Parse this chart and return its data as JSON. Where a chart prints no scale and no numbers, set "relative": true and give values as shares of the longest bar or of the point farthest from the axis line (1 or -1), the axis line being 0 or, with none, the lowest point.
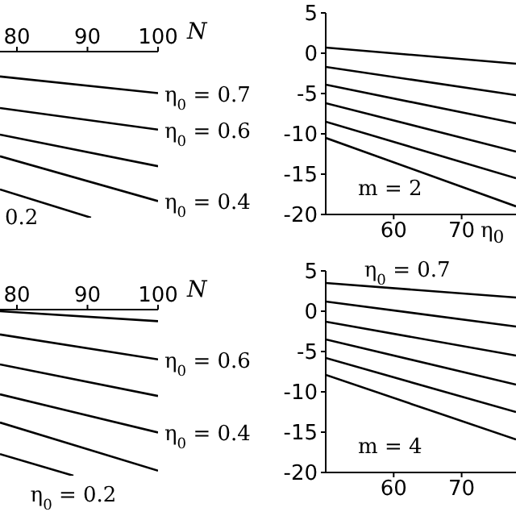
{
  "chart_data": [
    {
      "type": "line",
      "relative": true,
      "xlabel": "N",
      "xlim": [
        77.6,
        100
      ],
      "xticks": [
        80,
        90,
        100
      ],
      "series": [
        {
          "color": "#000000",
          "x": [
            77.6,
            100
          ],
          "values": [
            -0.15,
            -0.25
          ]
        },
        {
          "color": "#000000",
          "x": [
            77.6,
            100
          ],
          "values": [
            -0.34,
            -0.47
          ]
        },
        {
          "color": "#000000",
          "x": [
            77.6,
            100
          ],
          "values": [
            -0.5,
            -0.69
          ]
        },
        {
          "color": "#000000",
          "x": [
            77.6,
            100
          ],
          "values": [
            -0.63,
            -0.9
          ]
        },
        {
          "color": "#000000",
          "x": [
            77.6,
            90.5
          ],
          "values": [
            -0.83,
            -1
          ]
        }
      ],
      "annotations": [
        {
          "text": "η$_{0}$ = 0.7",
          "x": 100,
          "y": -0.25
        },
        {
          "text": "η$_{0}$ = 0.6",
          "x": 100,
          "y": -0.47
        },
        {
          "text": "η$_{0}$ = 0.4",
          "x": 100,
          "y": -0.9
        },
        "0.2"
      ]
    },
    {
      "type": "line",
      "xlim": [
        50,
        78
      ],
      "xticks": [
        60,
        70
      ],
      "ylim": [
        -20,
        5
      ],
      "yticks": [
        -20,
        -15,
        -10,
        -5,
        0,
        5
      ],
      "series": [
        {
          "color": "#000000",
          "x": [
            50,
            78
          ],
          "values": [
            0.7,
            -1.3
          ]
        },
        {
          "color": "#000000",
          "x": [
            50,
            78
          ],
          "values": [
            -1.7,
            -5.2
          ]
        },
        {
          "color": "#000000",
          "x": [
            50,
            78
          ],
          "values": [
            -3.9,
            -8.7
          ]
        },
        {
          "color": "#000000",
          "x": [
            50,
            78
          ],
          "values": [
            -6.2,
            -12.2
          ]
        },
        {
          "color": "#000000",
          "x": [
            50,
            78
          ],
          "values": [
            -8.5,
            -15.5
          ]
        },
        {
          "color": "#000000",
          "x": [
            50,
            78
          ],
          "values": [
            -10.5,
            -19
          ]
        }
      ],
      "annotations": [
        "m = 2",
        "η$_{0}$"
      ]
    },
    {
      "type": "line",
      "relative": true,
      "xlabel": "N",
      "xlim": [
        77.6,
        100
      ],
      "xticks": [
        80,
        90,
        100
      ],
      "series": [
        {
          "color": "#000000",
          "x": [
            77.6,
            100
          ],
          "values": [
            -0.01,
            -0.07
          ]
        },
        {
          "color": "#000000",
          "x": [
            77.6,
            100
          ],
          "values": [
            -0.15,
            -0.3
          ]
        },
        {
          "color": "#000000",
          "x": [
            77.6,
            100
          ],
          "values": [
            -0.33,
            -0.52
          ]
        },
        {
          "color": "#000000",
          "x": [
            77.6,
            100
          ],
          "values": [
            -0.51,
            -0.74
          ]
        },
        {
          "color": "#000000",
          "x": [
            77.6,
            100
          ],
          "values": [
            -0.68,
            -0.97
          ]
        },
        {
          "color": "#000000",
          "x": [
            77.6,
            88
          ],
          "values": [
            -0.87,
            -1
          ]
        }
      ],
      "annotations": [
        {
          "text": "η$_{0}$ = 0.6",
          "x": 100,
          "y": -0.3
        },
        {
          "text": "η$_{0}$ = 0.4",
          "x": 100,
          "y": -0.74
        },
        {
          "text": "η$_{0}$ = 0.2",
          "x": 88,
          "y": -1
        }
      ]
    },
    {
      "type": "line",
      "xlim": [
        50,
        78
      ],
      "xticks": [
        60,
        70
      ],
      "ylim": [
        -20,
        5
      ],
      "yticks": [
        -20,
        -15,
        -10,
        -5,
        0,
        5
      ],
      "series": [
        {
          "color": "#000000",
          "x": [
            50,
            78
          ],
          "values": [
            3.5,
            1.7
          ]
        },
        {
          "color": "#000000",
          "x": [
            50,
            78
          ],
          "values": [
            1.2,
            -1.9
          ]
        },
        {
          "color": "#000000",
          "x": [
            50,
            78
          ],
          "values": [
            -1.3,
            -5.5
          ]
        },
        {
          "color": "#000000",
          "x": [
            50,
            78
          ],
          "values": [
            -3.5,
            -9.1
          ]
        },
        {
          "color": "#000000",
          "x": [
            50,
            78
          ],
          "values": [
            -5.8,
            -12.5
          ]
        },
        {
          "color": "#000000",
          "x": [
            50,
            78
          ],
          "values": [
            -7.9,
            -15.9
          ]
        }
      ],
      "annotations": [
        "m = 4",
        {
          "text": "η$_{0}$ = 0.7",
          "x": 62,
          "y": 3.5
        }
      ]
    }
  ]
}
